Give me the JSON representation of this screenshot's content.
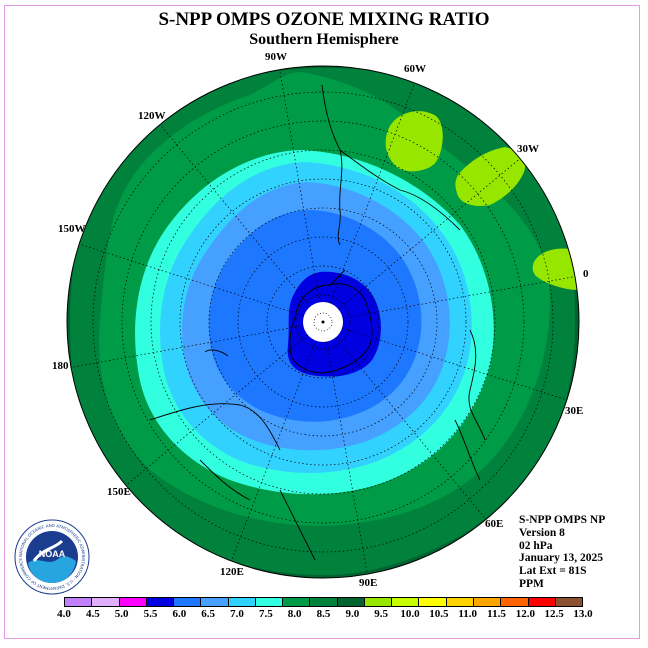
{
  "header": {
    "title": "S-NPP OMPS OZONE MIXING RATIO",
    "subtitle": "Southern Hemisphere"
  },
  "longitude_labels": {
    "lon_90w": "90W",
    "lon_60w": "60W",
    "lon_30w": "30W",
    "lon_120w": "120W",
    "lon_150w": "150W",
    "lon_0": "0",
    "lon_180": "180",
    "lon_30e": "30E",
    "lon_60e": "60E",
    "lon_90e": "90E",
    "lon_120e": "120E",
    "lon_150e": "150E"
  },
  "info": {
    "instrument": "S-NPP OMPS NP",
    "version": "Version 8",
    "level": "02 hPa",
    "date": "January 13, 2025",
    "lat_ext": "Lat Ext = 81S",
    "units": "PPM"
  },
  "logo": {
    "text": "NOAA",
    "ring_text": "NATIONAL OCEANIC AND ATMOSPHERIC ADMINISTRATION · U.S. DEPARTMENT OF COMMERCE"
  },
  "colorbar": {
    "colors": [
      "#c080ff",
      "#e0b0ff",
      "#ff00ff",
      "#0000e0",
      "#1e78ff",
      "#46a0ff",
      "#32d2ff",
      "#32ffe0",
      "#009b46",
      "#00823c",
      "#006432",
      "#96e600",
      "#c8ff00",
      "#ffff00",
      "#ffd200",
      "#ffa500",
      "#ff6400",
      "#ff0000",
      "#8c5032"
    ],
    "ticks": [
      "4.0",
      "4.5",
      "5.0",
      "5.5",
      "6.0",
      "6.5",
      "7.0",
      "7.5",
      "8.0",
      "8.5",
      "9.0",
      "9.5",
      "10.0",
      "10.5",
      "11.0",
      "11.5",
      "12.0",
      "12.5",
      "13.0"
    ]
  },
  "map_colors": {
    "dark_green": "#006432",
    "mid_green": "#00823c",
    "green": "#009b46",
    "cyan": "#32ffe0",
    "light_blue": "#32d2ff",
    "sky_blue": "#46a0ff",
    "blue": "#1e78ff",
    "deep_blue": "#0000e0",
    "yellow_green": "#96e600"
  }
}
